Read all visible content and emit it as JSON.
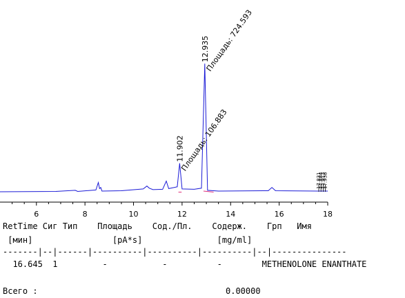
{
  "chart_data": {
    "type": "line",
    "xlabel": "",
    "ylabel": "",
    "xlim": [
      4.5,
      18.0
    ],
    "x_ticks": [
      "6",
      "8",
      "10",
      "12",
      "14",
      "16",
      "18"
    ],
    "series": [
      {
        "color": "#1a1ad6",
        "points": [
          [
            4.5,
            0.0
          ],
          [
            6.8,
            0.1
          ],
          [
            7.6,
            0.4
          ],
          [
            7.7,
            0.1
          ],
          [
            8.45,
            0.5
          ],
          [
            8.55,
            2.6
          ],
          [
            8.6,
            0.9
          ],
          [
            8.65,
            1.2
          ],
          [
            8.7,
            0.2
          ],
          [
            9.5,
            0.3
          ],
          [
            10.4,
            0.8
          ],
          [
            10.55,
            1.6
          ],
          [
            10.65,
            1.0
          ],
          [
            10.8,
            0.6
          ],
          [
            11.2,
            0.7
          ],
          [
            11.35,
            3.0
          ],
          [
            11.45,
            0.9
          ],
          [
            11.8,
            1.4
          ],
          [
            11.902,
            8.0
          ],
          [
            12.0,
            0.8
          ],
          [
            12.5,
            0.7
          ],
          [
            12.8,
            1.0
          ],
          [
            12.935,
            36.0
          ],
          [
            13.05,
            0.4
          ],
          [
            13.5,
            0.2
          ],
          [
            15.55,
            0.3
          ],
          [
            15.7,
            1.2
          ],
          [
            15.85,
            0.3
          ],
          [
            17.6,
            0.2
          ],
          [
            18.0,
            0.2
          ]
        ]
      }
    ],
    "ylim": [
      0,
      38
    ],
    "peaks": [
      {
        "rt": "11.902",
        "rt_value": 11.902,
        "area_label": "Площадь: 106.883",
        "height": 8.0
      },
      {
        "rt": "12.935",
        "rt_value": 12.935,
        "area_label": "Площадь: 724.593",
        "height": 36.0
      }
    ],
    "end_cluster_labels": [
      "17.831",
      "17.884",
      "17.913",
      "17.938"
    ]
  },
  "table": {
    "header1": "RetTime Сиг Тип    Площадь    Сод./Пл.    Содерж.    Грп   Имя",
    "header2": " [мин]                [pA*s]               [mg/ml]",
    "separator": "-------|--|------|----------|----------|----------|--|---------------",
    "row": "  16.645  1         -           -          -        METHENOLONE ENANTHATE",
    "total_label": "Всего :",
    "total_value": "0.00000"
  }
}
